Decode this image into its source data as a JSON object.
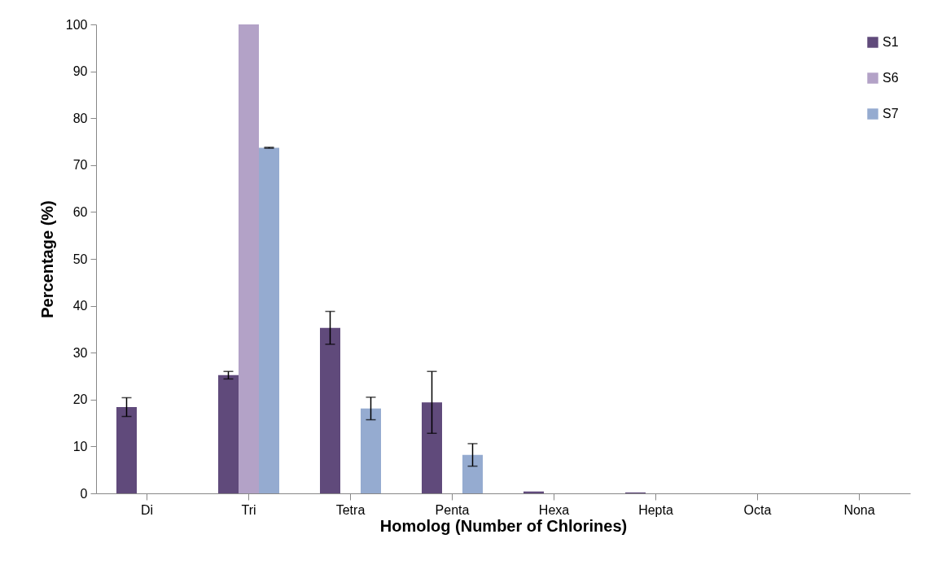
{
  "chart_data": {
    "type": "bar",
    "xlabel": "Homolog (Number of Chlorines)",
    "ylabel": "Percentage (%)",
    "categories": [
      "Di",
      "Tri",
      "Tetra",
      "Penta",
      "Hexa",
      "Hepta",
      "Octa",
      "Nona"
    ],
    "series": [
      {
        "name": "S1",
        "color": "#604a7b",
        "values": [
          18.4,
          25.2,
          35.3,
          19.4,
          0.4,
          0.2,
          0,
          0
        ],
        "errors": [
          2.0,
          0.8,
          3.5,
          6.6,
          null,
          null,
          null,
          null
        ]
      },
      {
        "name": "S6",
        "color": "#b3a2c7",
        "values": [
          0,
          100,
          0,
          0,
          0,
          0,
          0,
          0
        ]
      },
      {
        "name": "S7",
        "color": "#95abd0",
        "values": [
          0,
          73.7,
          18.1,
          8.2,
          0,
          0,
          0,
          0
        ],
        "errors": [
          null,
          0.1,
          2.4,
          2.4,
          null,
          null,
          null,
          null
        ]
      }
    ],
    "ylim": [
      0,
      100
    ],
    "yticks": [
      0,
      10,
      20,
      30,
      40,
      50,
      60,
      70,
      80,
      90,
      100
    ],
    "grid": false,
    "legend": "top right"
  }
}
